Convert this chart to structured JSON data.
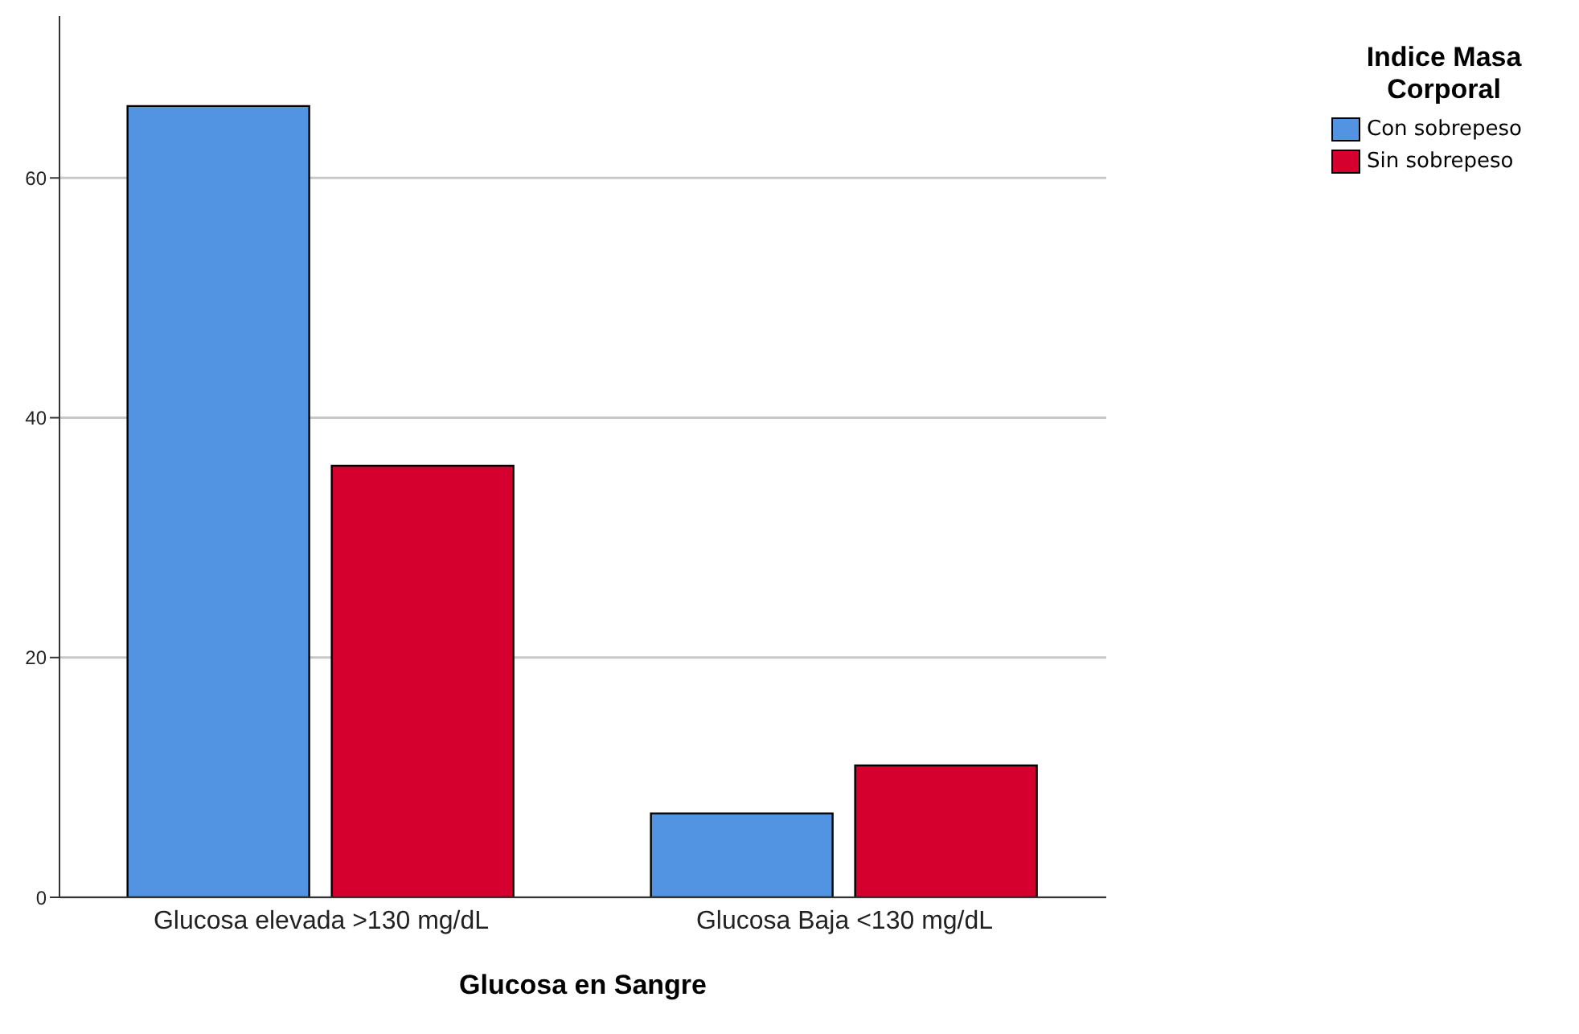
{
  "chart_data": {
    "type": "bar",
    "xlabel": "Glucosa en Sangre",
    "legend_title": "Indice Masa Corporal",
    "categories": [
      "Glucosa elevada >130 mg/dL",
      "Glucosa Baja <130 mg/dL"
    ],
    "series": [
      {
        "name": "Con sobrepeso",
        "color": "#5294e2",
        "values": [
          66,
          7
        ]
      },
      {
        "name": "Sin sobrepeso",
        "color": "#d6002e",
        "values": [
          36,
          11
        ]
      }
    ],
    "ylim": [
      0,
      73.5
    ],
    "yticks": [
      0,
      20,
      40,
      60
    ],
    "grid": "y",
    "legend": "top right"
  }
}
